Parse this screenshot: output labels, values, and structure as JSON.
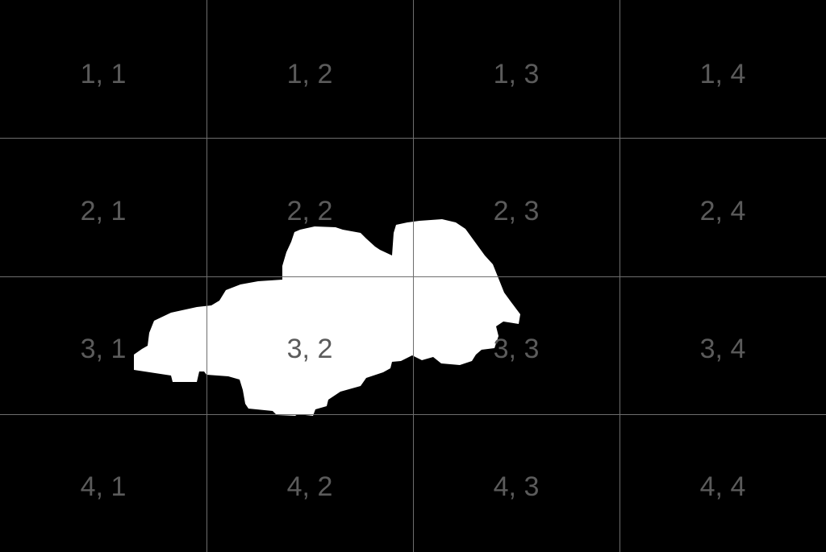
{
  "grid": {
    "rows": 4,
    "cols": 4,
    "line_color": "#6e6e6e",
    "background_color": "#000000",
    "label_color": "#5b5b5b",
    "labels": [
      [
        "1, 1",
        "1, 2",
        "1, 3",
        "1, 4"
      ],
      [
        "2, 1",
        "2, 2",
        "2, 3",
        "2, 4"
      ],
      [
        "3, 1",
        "3, 2",
        "3, 3",
        "3, 4"
      ],
      [
        "4, 1",
        "4, 2",
        "4, 3",
        "4, 4"
      ]
    ]
  },
  "mask": {
    "color": "#ffffff"
  }
}
